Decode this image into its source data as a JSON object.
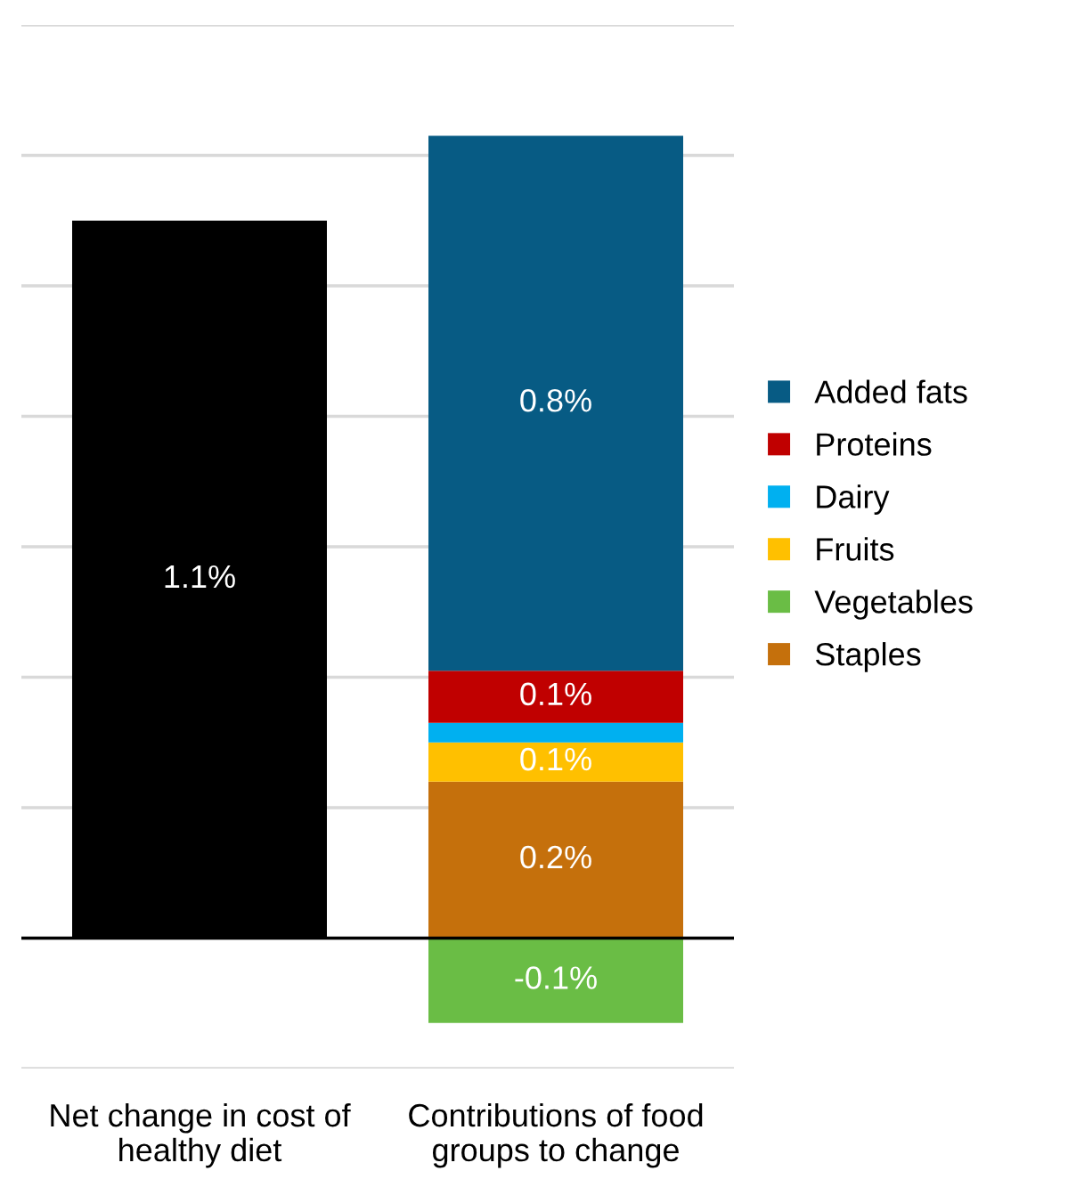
{
  "chart_data": {
    "type": "bar",
    "stacked": true,
    "categories": [
      "Net change in cost of\nhealthy diet",
      "Contributions of food\ngroups to change"
    ],
    "series": [
      {
        "color": "#000000",
        "values": [
          1.1,
          null
        ],
        "value_labels": [
          "1.1%",
          null
        ]
      },
      {
        "name": "Staples",
        "color": "#c5700c",
        "values": [
          null,
          0.24
        ],
        "value_labels": [
          null,
          "0.2%"
        ]
      },
      {
        "name": "Vegetables",
        "color": "#6abd45",
        "values": [
          null,
          -0.13
        ],
        "value_labels": [
          null,
          "-0.1%"
        ]
      },
      {
        "name": "Fruits",
        "color": "#ffc000",
        "values": [
          null,
          0.06
        ],
        "value_labels": [
          null,
          "0.1%"
        ]
      },
      {
        "name": "Dairy",
        "color": "#00b0f0",
        "values": [
          null,
          0.03
        ],
        "value_labels": [
          null,
          null
        ]
      },
      {
        "name": "Proteins",
        "color": "#c00000",
        "values": [
          null,
          0.08
        ],
        "value_labels": [
          null,
          "0.1%"
        ]
      },
      {
        "name": "Added fats",
        "color": "#075b84",
        "values": [
          null,
          0.82
        ],
        "value_labels": [
          null,
          "0.8%"
        ]
      }
    ],
    "ylim": [
      -0.2,
      1.4
    ],
    "yticks": [
      {
        "value": -0.2,
        "label": null
      },
      {
        "value": 0,
        "label": null
      },
      {
        "value": 0.2,
        "label": null
      },
      {
        "value": 0.4,
        "label": null
      },
      {
        "value": 0.6,
        "label": null
      },
      {
        "value": 0.8,
        "label": null
      },
      {
        "value": 1.0,
        "label": null
      },
      {
        "value": 1.2,
        "label": null
      },
      {
        "value": 1.4,
        "label": null
      }
    ],
    "ref_lines": [
      {
        "axis": "y",
        "value": 0,
        "label": null,
        "color": "#000000"
      }
    ],
    "grid": "y",
    "legend": "right",
    "tick_labels": "x",
    "marker": "square"
  }
}
